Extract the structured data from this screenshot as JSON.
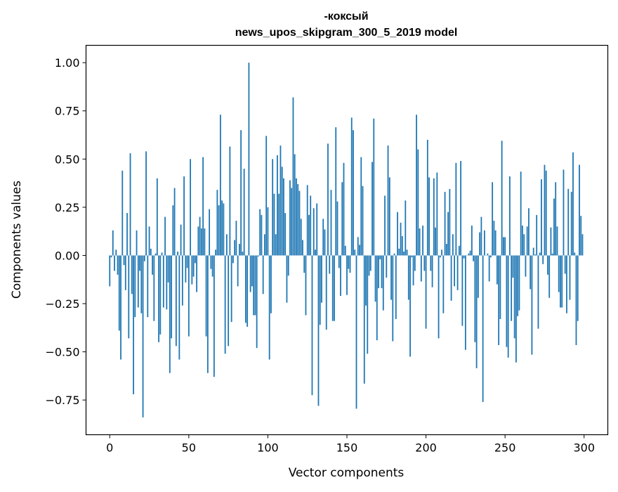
{
  "chart_data": {
    "type": "bar",
    "title": "-коксый",
    "subtitle": "news_upos_skipgram_300_5_2019 model",
    "xlabel": "Vector components",
    "ylabel": "Components values",
    "xlim": [
      -15,
      315
    ],
    "ylim": [
      -0.93,
      1.09
    ],
    "xticks": [
      "0",
      "50",
      "100",
      "150",
      "200",
      "250",
      "300"
    ],
    "yticks": [
      "−0.75",
      "−0.50",
      "−0.25",
      "0.00",
      "0.25",
      "0.50",
      "0.75",
      "1.00"
    ],
    "grid": false,
    "color": "#1f77b4",
    "values": [
      -0.16,
      -0.01,
      0.13,
      -0.08,
      0.03,
      -0.1,
      -0.39,
      -0.54,
      0.44,
      -0.05,
      -0.18,
      0.22,
      -0.43,
      0.53,
      -0.2,
      -0.72,
      -0.32,
      0.13,
      -0.27,
      -0.08,
      -0.3,
      -0.84,
      -0.03,
      0.54,
      -0.32,
      0.15,
      0.035,
      -0.1,
      -0.34,
      0.01,
      0.4,
      -0.45,
      -0.41,
      0.015,
      -0.27,
      0.2,
      -0.28,
      -0.14,
      -0.61,
      -0.43,
      0.26,
      0.35,
      -0.47,
      0.02,
      -0.54,
      0.16,
      -0.26,
      0.41,
      -0.14,
      -0.065,
      -0.42,
      0.5,
      -0.15,
      -0.11,
      -0.04,
      -0.19,
      0.15,
      0.2,
      0.14,
      0.51,
      0.14,
      -0.42,
      -0.61,
      0.24,
      -0.07,
      -0.11,
      -0.63,
      0.03,
      0.34,
      0.26,
      0.73,
      0.285,
      0.27,
      -0.51,
      0.11,
      -0.47,
      0.565,
      -0.345,
      -0.04,
      0.08,
      0.18,
      -0.16,
      0.06,
      0.65,
      0.02,
      0.45,
      -0.35,
      -0.37,
      1.0,
      -0.19,
      -0.16,
      -0.31,
      -0.31,
      -0.48,
      -0.005,
      0.24,
      0.21,
      -0.2,
      0.11,
      0.62,
      0.25,
      -0.54,
      -0.3,
      0.5,
      0.32,
      0.11,
      0.52,
      0.32,
      0.57,
      0.46,
      0.4,
      0.22,
      -0.245,
      -0.105,
      0.39,
      0.35,
      0.82,
      0.525,
      0.4,
      0.37,
      0.335,
      0.19,
      0.08,
      -0.09,
      -0.31,
      0.365,
      0.21,
      0.31,
      -0.725,
      0.245,
      0.03,
      0.27,
      -0.78,
      -0.36,
      -0.245,
      0.19,
      0.135,
      -0.385,
      0.58,
      -0.095,
      0.34,
      -0.34,
      -0.34,
      0.665,
      0.28,
      -0.065,
      -0.21,
      0.38,
      0.48,
      0.05,
      -0.205,
      -0.07,
      -0.09,
      0.715,
      0.65,
      0.03,
      -0.795,
      0.095,
      0.055,
      0.51,
      0.36,
      -0.665,
      -0.26,
      -0.51,
      -0.105,
      -0.08,
      0.485,
      0.71,
      -0.24,
      -0.44,
      -0.17,
      -0.02,
      -0.17,
      -0.285,
      0.31,
      -0.115,
      0.57,
      0.405,
      -0.23,
      -0.445,
      0.01,
      -0.33,
      0.225,
      0.035,
      0.17,
      0.1,
      0.02,
      0.285,
      0.03,
      -0.23,
      -0.525,
      -0.01,
      -0.155,
      -0.08,
      0.73,
      0.55,
      0.14,
      -0.135,
      0.155,
      -0.08,
      -0.38,
      0.6,
      0.405,
      -0.08,
      -0.165,
      0.4,
      0.145,
      0.43,
      -0.43,
      -0.01,
      0.03,
      -0.3,
      0.33,
      0.06,
      0.225,
      0.345,
      -0.235,
      0.11,
      -0.16,
      0.48,
      -0.18,
      0.05,
      0.49,
      -0.365,
      -0.015,
      -0.49,
      0.0,
      0.01,
      0.025,
      0.155,
      -0.03,
      -0.45,
      -0.585,
      -0.22,
      0.12,
      0.2,
      -0.76,
      0.13,
      0.0,
      0.01,
      -0.135,
      -0.01,
      0.38,
      0.18,
      0.13,
      -0.15,
      -0.465,
      -0.33,
      0.595,
      0.095,
      0.095,
      -0.475,
      -0.53,
      0.41,
      -0.34,
      -0.115,
      -0.43,
      -0.555,
      -0.315,
      -0.285,
      0.435,
      0.155,
      0.11,
      -0.11,
      0.15,
      0.245,
      -0.175,
      -0.515,
      0.04,
      0.005,
      0.21,
      -0.38,
      0.015,
      0.395,
      -0.045,
      0.47,
      0.44,
      -0.1,
      -0.22,
      0.145,
      0.01,
      0.295,
      0.38,
      0.15,
      -0.19,
      -0.27,
      -0.27,
      0.445,
      -0.095,
      -0.3,
      0.345,
      -0.23,
      0.33,
      0.535,
      0.015,
      -0.465,
      -0.34,
      0.47,
      0.205,
      0.11
    ]
  }
}
